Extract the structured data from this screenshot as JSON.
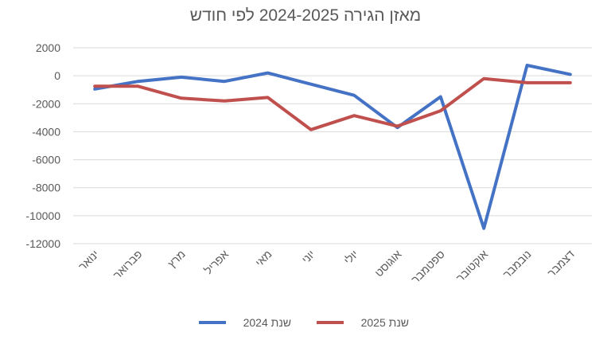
{
  "chart_data": {
    "type": "line",
    "title": "מאזן הגירה 2024-2025 לפי חודש",
    "categories": [
      "ינואר",
      "פברואר",
      "מרץ",
      "אפריל",
      "מאי",
      "יוני",
      "יולי",
      "אוגוסט",
      "ספטמבר",
      "אוקטובר",
      "נובמבר",
      "דצמבר"
    ],
    "y_ticks": [
      2000,
      0,
      -2000,
      -4000,
      -6000,
      -8000,
      -10000,
      -12000
    ],
    "ylim": [
      -12000,
      2000
    ],
    "grid": true,
    "legend_position": "bottom",
    "series": [
      {
        "name": "שנת 2024",
        "color": "#4472c4",
        "values": [
          -950,
          -400,
          -100,
          -400,
          200,
          -600,
          -1400,
          -3700,
          -1500,
          -10900,
          750,
          100
        ]
      },
      {
        "name": "שנת 2025",
        "color": "#c0504d",
        "values": [
          -750,
          -750,
          -1600,
          -1800,
          -1550,
          -3850,
          -2850,
          -3600,
          -2500,
          -200,
          -500,
          -500
        ]
      }
    ]
  }
}
